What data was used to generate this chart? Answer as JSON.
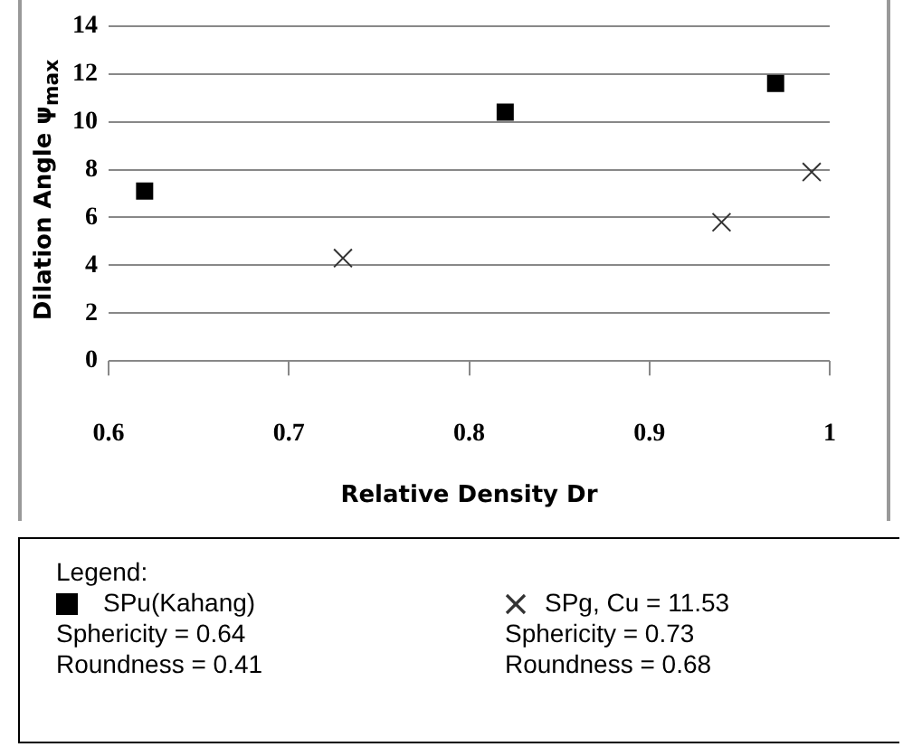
{
  "chart_data": {
    "type": "scatter",
    "xlabel": "Relative Density Dr",
    "ylabel": "Dilation Angle ψ$_{max}$",
    "legend_title": "Legend:",
    "legend": "bottom",
    "grid": "y",
    "xlim": [
      0.6,
      1
    ],
    "xticks": [
      0.6,
      0.7,
      0.8,
      0.9,
      1
    ],
    "ylim": [
      0,
      14
    ],
    "yticks": [
      0,
      2,
      4,
      6,
      8,
      10,
      12,
      14
    ],
    "series": [
      {
        "name": "SPu(Kahang)",
        "color": "#000000",
        "marker": "square",
        "x": [
          0.62,
          0.82,
          0.97
        ],
        "values": [
          7.1,
          10.4,
          11.6
        ]
      },
      {
        "name": "SPg, Cu = 11.53",
        "color": "#333333",
        "marker": "cross",
        "x": [
          0.73,
          0.94,
          0.99
        ],
        "values": [
          4.3,
          5.8,
          7.9
        ]
      }
    ],
    "annotations": [
      "Sphericity = 0.64",
      "Roundness = 0.41",
      "Sphericity = 0.73",
      "Roundness = 0.68"
    ]
  }
}
